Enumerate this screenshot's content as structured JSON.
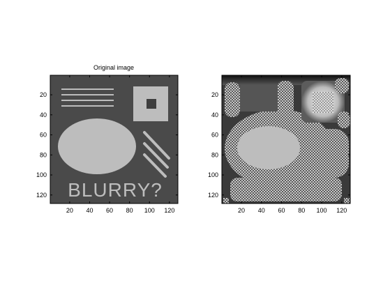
{
  "figure": {
    "panels": [
      {
        "title": "Original image",
        "xticks": [
          "20",
          "40",
          "60",
          "80",
          "100",
          "120"
        ],
        "yticks": [
          "20",
          "40",
          "60",
          "80",
          "100",
          "120"
        ],
        "content": {
          "text": "BLURRY?"
        }
      },
      {
        "title": "",
        "xticks": [
          "20",
          "40",
          "60",
          "80",
          "100",
          "120"
        ],
        "yticks": [
          "20",
          "40",
          "60",
          "80",
          "100",
          "120"
        ]
      }
    ]
  },
  "colors": {
    "background": "#4a4a4a",
    "shape": "#bdbdbd",
    "inner_square": "#3e3e3e",
    "axis": "#000000"
  }
}
